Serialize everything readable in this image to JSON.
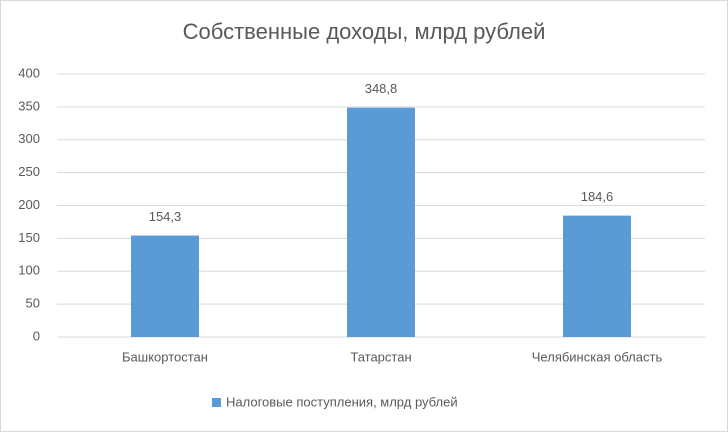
{
  "chart_data": {
    "type": "bar",
    "title": "Собственные доходы, млрд рублей",
    "categories": [
      "Башкортостан",
      "Татарстан",
      "Челябинская область"
    ],
    "series": [
      {
        "name": "Налоговые поступления, млрд рублей",
        "color": "#5b9bd5",
        "values": [
          154.3,
          348.8,
          184.6
        ],
        "value_labels": [
          "154,3",
          "348,8",
          "184,6"
        ]
      }
    ],
    "ylim": [
      0,
      400
    ],
    "yticks": [
      0,
      50,
      100,
      150,
      200,
      250,
      300,
      350,
      400
    ],
    "grid": true,
    "legend": "bottom"
  }
}
